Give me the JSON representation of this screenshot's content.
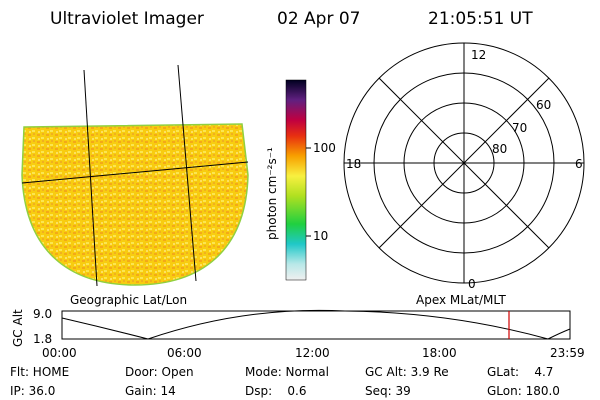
{
  "header": {
    "title": "Ultraviolet Imager",
    "date": "02 Apr 07",
    "time": "21:05:51 UT"
  },
  "image": {
    "label": "Geographic Lat/Lon"
  },
  "colorbar": {
    "label": "photon cm⁻²s⁻¹",
    "ticks": [
      "100",
      "10"
    ]
  },
  "polar": {
    "label": "Apex MLat/MLT",
    "hours": [
      "12",
      "18",
      "6",
      "0"
    ],
    "latitudes": [
      "60",
      "70",
      "80"
    ]
  },
  "altitude": {
    "label": "GC Alt",
    "yticks": [
      "9.0",
      "1.8"
    ],
    "xticks": [
      "00:00",
      "06:00",
      "12:00",
      "18:00",
      "23:59"
    ]
  },
  "status": {
    "rows": [
      [
        "Flt: HOME",
        "Door: Open",
        "Mode: Normal",
        "GC Alt: 3.9 Re",
        "GLat:    4.7"
      ],
      [
        "IP: 36.0",
        "Gain: 14",
        "Dsp:    0.6",
        "Seq: 39",
        "GLon: 180.0"
      ]
    ]
  }
}
